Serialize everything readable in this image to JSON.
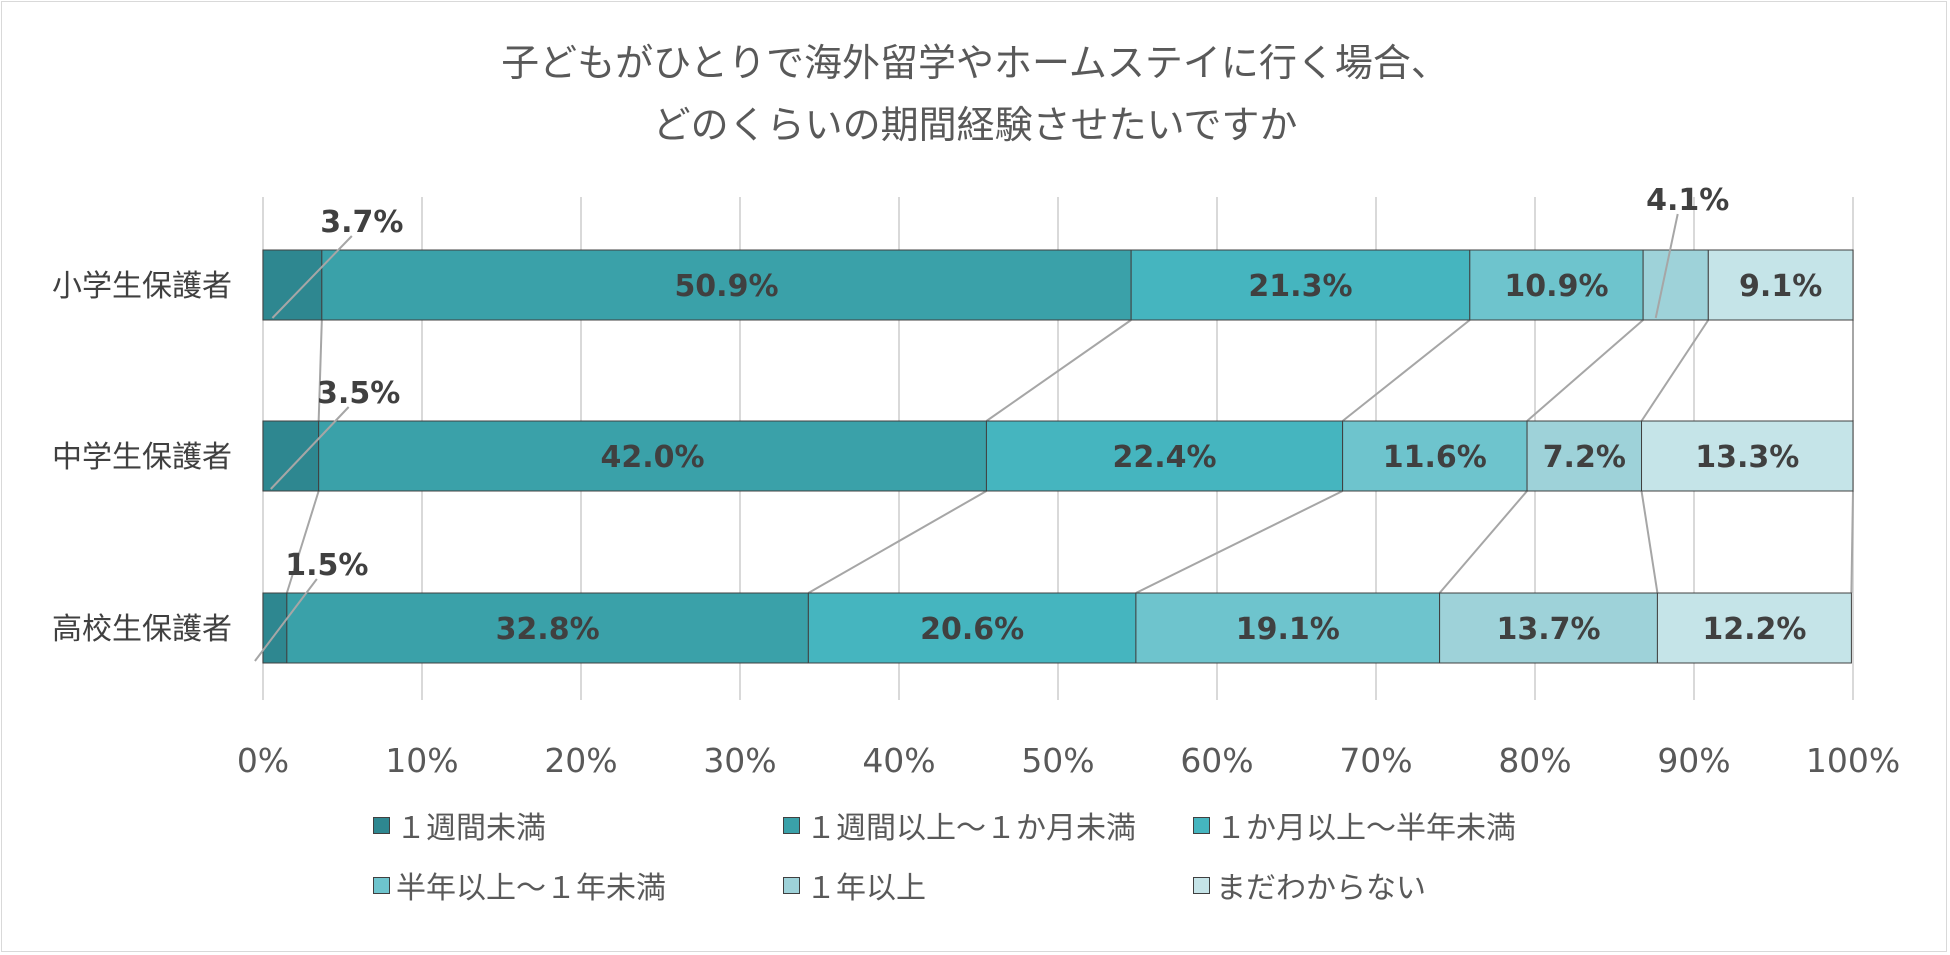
{
  "chart_data": {
    "type": "bar",
    "orientation": "horizontal",
    "stacked": "percent",
    "title_lines": [
      "子どもがひとりで海外留学やホームステイに行く場合、",
      "どのくらいの期間経験させたいですか"
    ],
    "categories": [
      "小学生保護者",
      "中学生保護者",
      "高校生保護者"
    ],
    "series": [
      {
        "name": "１週間未満",
        "values": [
          3.7,
          3.5,
          1.5
        ],
        "labels": [
          "3.7%",
          "3.5%",
          "1.5%"
        ],
        "color": "#2e8790"
      },
      {
        "name": "１週間以上～１か月未満",
        "values": [
          50.9,
          42.0,
          32.8
        ],
        "labels": [
          "50.9%",
          "42.0%",
          "32.8%"
        ],
        "color": "#3aa1a9"
      },
      {
        "name": "１か月以上～半年未満",
        "values": [
          21.3,
          22.4,
          20.6
        ],
        "labels": [
          "21.3%",
          "22.4%",
          "20.6%"
        ],
        "color": "#45b5bf"
      },
      {
        "name": "半年以上～１年未満",
        "values": [
          10.9,
          11.6,
          19.1
        ],
        "labels": [
          "10.9%",
          "11.6%",
          "19.1%"
        ],
        "color": "#6ec4cd"
      },
      {
        "name": "１年以上",
        "values": [
          4.1,
          7.2,
          13.7
        ],
        "labels": [
          "4.1%",
          "7.2%",
          "13.7%"
        ],
        "color": "#9ed2d9"
      },
      {
        "name": "まだわからない",
        "values": [
          9.1,
          13.3,
          12.2
        ],
        "labels": [
          "9.1%",
          "13.3%",
          "12.2%"
        ],
        "color": "#c5e4e8"
      }
    ],
    "xlim": [
      0,
      100
    ],
    "x_ticks": [
      "0%",
      "10%",
      "20%",
      "30%",
      "40%",
      "50%",
      "60%",
      "70%",
      "80%",
      "90%",
      "100%"
    ],
    "grid": true,
    "series_lines": true,
    "legend_position": "bottom"
  }
}
